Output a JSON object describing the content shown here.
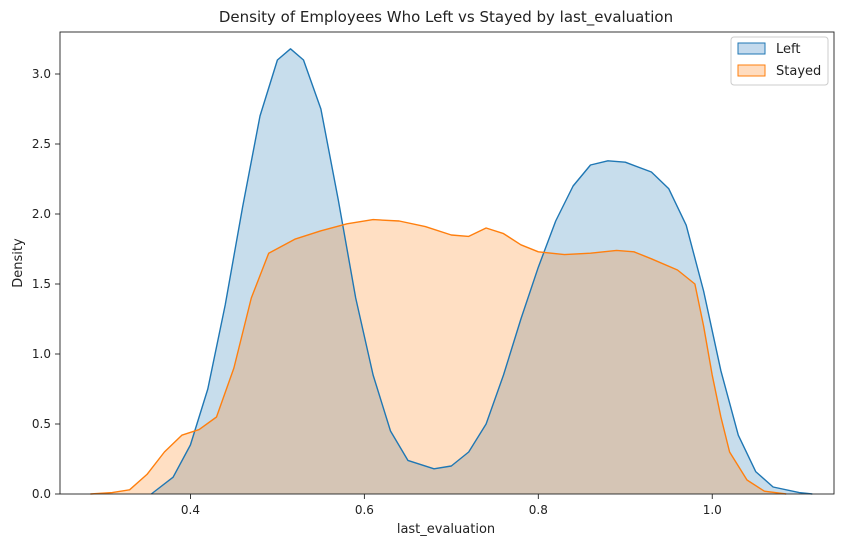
{
  "chart_data": {
    "type": "area",
    "title": "Density of Employees Who Left vs Stayed by last_evaluation",
    "xlabel": "last_evaluation",
    "ylabel": "Density",
    "xlim": [
      0.25,
      1.14
    ],
    "ylim": [
      0,
      3.3
    ],
    "xticks": [
      0.4,
      0.6,
      0.8,
      1.0
    ],
    "xtick_labels": [
      "0.4",
      "0.6",
      "0.8",
      "1.0"
    ],
    "yticks": [
      0.0,
      0.5,
      1.0,
      1.5,
      2.0,
      2.5,
      3.0
    ],
    "ytick_labels": [
      "0.0",
      "0.5",
      "1.0",
      "1.5",
      "2.0",
      "2.5",
      "3.0"
    ],
    "grid": false,
    "legend_position": "top-right",
    "series": [
      {
        "name": "Left",
        "color": "#1f77b4",
        "fill": "#c4daed",
        "points": [
          [
            0.355,
            0.0
          ],
          [
            0.38,
            0.12
          ],
          [
            0.4,
            0.35
          ],
          [
            0.42,
            0.75
          ],
          [
            0.44,
            1.35
          ],
          [
            0.46,
            2.05
          ],
          [
            0.48,
            2.7
          ],
          [
            0.5,
            3.1
          ],
          [
            0.515,
            3.18
          ],
          [
            0.53,
            3.1
          ],
          [
            0.55,
            2.75
          ],
          [
            0.57,
            2.1
          ],
          [
            0.59,
            1.4
          ],
          [
            0.61,
            0.85
          ],
          [
            0.63,
            0.45
          ],
          [
            0.65,
            0.24
          ],
          [
            0.68,
            0.18
          ],
          [
            0.7,
            0.2
          ],
          [
            0.72,
            0.3
          ],
          [
            0.74,
            0.5
          ],
          [
            0.76,
            0.85
          ],
          [
            0.78,
            1.25
          ],
          [
            0.8,
            1.62
          ],
          [
            0.82,
            1.95
          ],
          [
            0.84,
            2.2
          ],
          [
            0.86,
            2.35
          ],
          [
            0.88,
            2.38
          ],
          [
            0.9,
            2.37
          ],
          [
            0.93,
            2.3
          ],
          [
            0.95,
            2.18
          ],
          [
            0.97,
            1.92
          ],
          [
            0.99,
            1.45
          ],
          [
            1.01,
            0.88
          ],
          [
            1.03,
            0.42
          ],
          [
            1.05,
            0.16
          ],
          [
            1.07,
            0.05
          ],
          [
            1.1,
            0.01
          ],
          [
            1.115,
            0.0
          ]
        ]
      },
      {
        "name": "Stayed",
        "color": "#ff7f0e",
        "fill": "#ffdcbf",
        "points": [
          [
            0.285,
            0.0
          ],
          [
            0.31,
            0.01
          ],
          [
            0.33,
            0.03
          ],
          [
            0.35,
            0.14
          ],
          [
            0.37,
            0.3
          ],
          [
            0.39,
            0.42
          ],
          [
            0.41,
            0.46
          ],
          [
            0.43,
            0.55
          ],
          [
            0.45,
            0.9
          ],
          [
            0.47,
            1.4
          ],
          [
            0.49,
            1.72
          ],
          [
            0.52,
            1.82
          ],
          [
            0.55,
            1.88
          ],
          [
            0.58,
            1.93
          ],
          [
            0.61,
            1.96
          ],
          [
            0.64,
            1.95
          ],
          [
            0.67,
            1.91
          ],
          [
            0.7,
            1.85
          ],
          [
            0.72,
            1.84
          ],
          [
            0.74,
            1.9
          ],
          [
            0.76,
            1.86
          ],
          [
            0.78,
            1.78
          ],
          [
            0.8,
            1.73
          ],
          [
            0.83,
            1.71
          ],
          [
            0.86,
            1.72
          ],
          [
            0.89,
            1.74
          ],
          [
            0.91,
            1.73
          ],
          [
            0.93,
            1.68
          ],
          [
            0.96,
            1.6
          ],
          [
            0.98,
            1.5
          ],
          [
            0.99,
            1.2
          ],
          [
            1.0,
            0.85
          ],
          [
            1.01,
            0.55
          ],
          [
            1.02,
            0.3
          ],
          [
            1.04,
            0.1
          ],
          [
            1.06,
            0.02
          ],
          [
            1.085,
            0.0
          ]
        ]
      }
    ]
  }
}
